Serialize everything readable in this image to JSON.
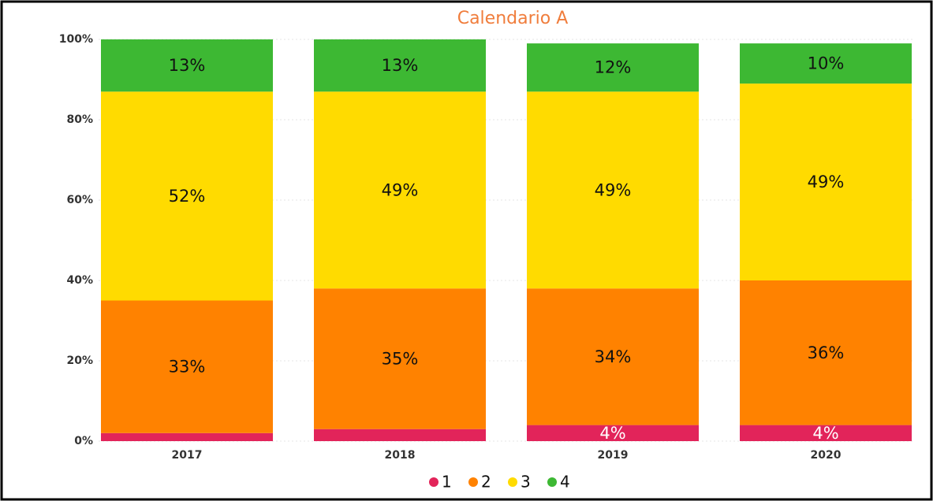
{
  "chart_data": {
    "type": "stacked_bar",
    "title": "Calendario A",
    "categories": [
      "2017",
      "2018",
      "2019",
      "2020"
    ],
    "series": [
      {
        "name": "1",
        "color": "#e2245a",
        "values": [
          2,
          3,
          4,
          4
        ],
        "value_labels": [
          null,
          null,
          "4%",
          "4%"
        ]
      },
      {
        "name": "2",
        "color": "#ff8200",
        "values": [
          33,
          35,
          34,
          36
        ],
        "value_labels": [
          "33%",
          "35%",
          "34%",
          "36%"
        ]
      },
      {
        "name": "3",
        "color": "#ffdb00",
        "values": [
          52,
          49,
          49,
          49
        ],
        "value_labels": [
          "52%",
          "49%",
          "49%",
          "49%"
        ]
      },
      {
        "name": "4",
        "color": "#3db833",
        "values": [
          13,
          13,
          12,
          10
        ],
        "value_labels": [
          "13%",
          "13%",
          "12%",
          "10%"
        ]
      }
    ],
    "ylim": [
      0,
      100
    ],
    "yticks": [
      {
        "value": 0,
        "label": "0%"
      },
      {
        "value": 20,
        "label": "20%"
      },
      {
        "value": 40,
        "label": "40%"
      },
      {
        "value": 60,
        "label": "60%"
      },
      {
        "value": 80,
        "label": "80%"
      },
      {
        "value": 100,
        "label": "100%"
      }
    ],
    "grid": true,
    "legend": "bottom"
  }
}
